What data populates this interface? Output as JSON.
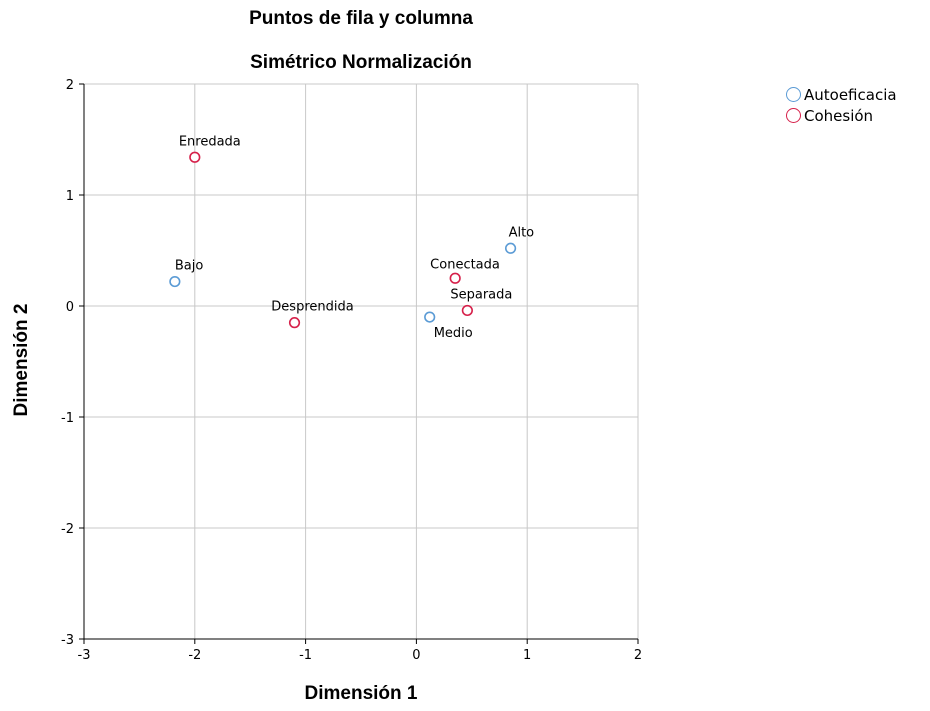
{
  "chart_data": {
    "type": "scatter",
    "title": "Puntos de fila y columna",
    "subtitle": "Simétrico Normalización",
    "xlabel": "Dimensión 1",
    "ylabel": "Dimensión 2",
    "xlim": [
      -3,
      2
    ],
    "ylim": [
      -3,
      2
    ],
    "xticks": [
      -3,
      -2,
      -1,
      0,
      1,
      2
    ],
    "yticks": [
      -3,
      -2,
      -1,
      0,
      1,
      2
    ],
    "grid": true,
    "legend_position": "top-right",
    "series": [
      {
        "name": "Autoeficacia",
        "color": "#5b9bd5",
        "points": [
          {
            "label": "Alto",
            "x": 0.85,
            "y": 0.52
          },
          {
            "label": "Bajo",
            "x": -2.18,
            "y": 0.22
          },
          {
            "label": "Medio",
            "x": 0.12,
            "y": -0.1
          }
        ]
      },
      {
        "name": "Cohesión",
        "color": "#d6204a",
        "points": [
          {
            "label": "Enredada",
            "x": -2.0,
            "y": 1.34
          },
          {
            "label": "Conectada",
            "x": 0.35,
            "y": 0.25
          },
          {
            "label": "Separada",
            "x": 0.46,
            "y": -0.04
          },
          {
            "label": "Desprendida",
            "x": -1.1,
            "y": -0.15
          }
        ]
      }
    ]
  }
}
